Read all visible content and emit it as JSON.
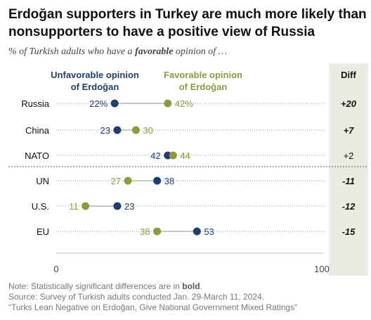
{
  "title": "Erdoğan supporters in Turkey are much more likely than nonsupporters to have a positive view of Russia",
  "subtitle": {
    "before": "% of Turkish adults who have a ",
    "emphasis": "favorable",
    "after": " opinion of …"
  },
  "chart_data": {
    "type": "dot",
    "title": "Erdoğan supporters in Turkey are much more likely than nonsupporters to have a positive view of Russia",
    "subtitle": "% of Turkish adults who have a favorable opinion of …",
    "categories": [
      "Russia",
      "China",
      "NATO",
      "UN",
      "U.S.",
      "EU"
    ],
    "series": [
      {
        "name": "Unfavorable opinion of Erdoğan",
        "color": "#1f3f6e",
        "values": [
          22,
          23,
          42,
          38,
          23,
          53
        ],
        "labels": [
          "22%",
          "23",
          "42",
          "38",
          "23",
          "53"
        ]
      },
      {
        "name": "Favorable opinion of Erdoğan",
        "color": "#8f9a3c",
        "values": [
          42,
          30,
          44,
          27,
          11,
          38
        ],
        "labels": [
          "42%",
          "30",
          "44",
          "27",
          "11",
          "38"
        ]
      }
    ],
    "diff": {
      "header": "Diff",
      "values": [
        "+20",
        "+7",
        "+2",
        "-11",
        "-12",
        "-15"
      ],
      "significant": [
        true,
        true,
        false,
        true,
        true,
        true
      ]
    },
    "xlim": [
      0,
      100
    ],
    "xticks": [
      "0",
      "100"
    ],
    "divider_after": "NATO"
  },
  "notes": {
    "note_before": "Note: Statistically significant differences are in ",
    "note_bold": "bold",
    "note_after": ".",
    "source": "Source: Survey of Turkish adults conducted Jan. 29-March 11, 2024.",
    "report": "“Turks Lean Negative on Erdoğan, Give National Government Mixed Ratings”"
  }
}
